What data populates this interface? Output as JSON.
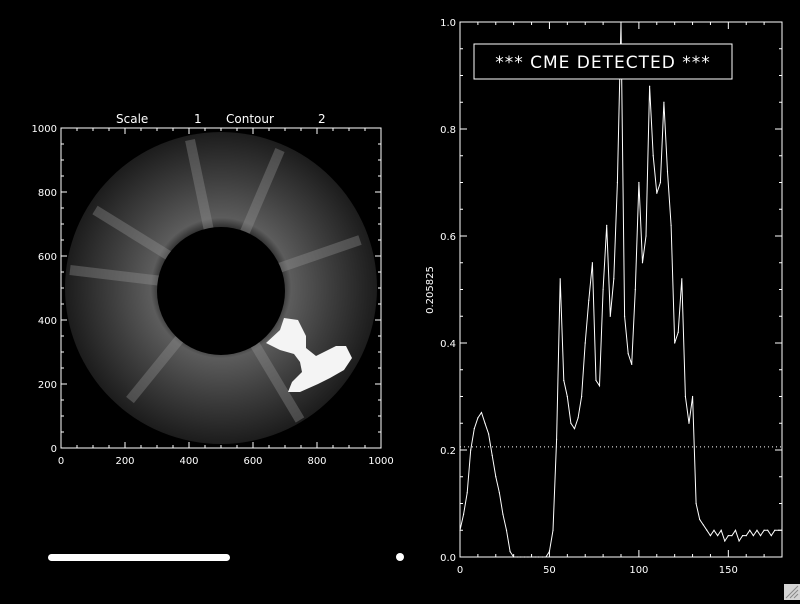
{
  "left_panel": {
    "header": {
      "scale_label": "Scale",
      "scale_value": "1",
      "contour_label": "Contour",
      "contour_value": "2"
    },
    "x_ticks": [
      "0",
      "200",
      "400",
      "600",
      "800",
      "1000"
    ],
    "y_ticks": [
      "0",
      "200",
      "400",
      "600",
      "800",
      "1000"
    ]
  },
  "chart_data": [
    {
      "type": "line",
      "banner": "*** CME DETECTED ***",
      "ylabel": "0.205825",
      "xlabel": "",
      "xlim": [
        0,
        180
      ],
      "ylim": [
        0,
        1.0
      ],
      "x_ticks": [
        "0",
        "50",
        "100",
        "150"
      ],
      "y_ticks": [
        "0.0",
        "0.2",
        "0.4",
        "0.6",
        "0.8",
        "1.0"
      ],
      "threshold": 0.205825,
      "series": [
        {
          "x": [
            0,
            2,
            4,
            6,
            8,
            10,
            12,
            14,
            16,
            18,
            20,
            22,
            24,
            26,
            28,
            30,
            32,
            34,
            36,
            38,
            40,
            42,
            44,
            46,
            48,
            50,
            52,
            54,
            56,
            58,
            60,
            62,
            64,
            66,
            68,
            70,
            72,
            74,
            76,
            78,
            80,
            82,
            84,
            86,
            88,
            90,
            92,
            94,
            96,
            98,
            100,
            102,
            104,
            106,
            108,
            110,
            112,
            114,
            116,
            118,
            120,
            122,
            124,
            126,
            128,
            130,
            132,
            134,
            136,
            138,
            140,
            142,
            144,
            146,
            148,
            150,
            152,
            154,
            156,
            158,
            160,
            162,
            164,
            166,
            168,
            170,
            172,
            174,
            176,
            178,
            180
          ],
          "values": [
            0.05,
            0.08,
            0.12,
            0.2,
            0.24,
            0.26,
            0.27,
            0.25,
            0.23,
            0.19,
            0.15,
            0.12,
            0.08,
            0.05,
            0.01,
            0.0,
            0.0,
            0.0,
            0.0,
            0.0,
            0.0,
            0.0,
            0.0,
            0.0,
            0.0,
            0.01,
            0.05,
            0.22,
            0.52,
            0.33,
            0.3,
            0.25,
            0.24,
            0.26,
            0.3,
            0.4,
            0.48,
            0.55,
            0.33,
            0.32,
            0.5,
            0.62,
            0.45,
            0.52,
            0.7,
            1.0,
            0.45,
            0.38,
            0.36,
            0.5,
            0.7,
            0.55,
            0.6,
            0.88,
            0.75,
            0.68,
            0.7,
            0.85,
            0.72,
            0.62,
            0.4,
            0.42,
            0.52,
            0.3,
            0.25,
            0.3,
            0.1,
            0.07,
            0.06,
            0.05,
            0.04,
            0.05,
            0.04,
            0.05,
            0.03,
            0.04,
            0.04,
            0.05,
            0.03,
            0.04,
            0.04,
            0.05,
            0.04,
            0.05,
            0.04,
            0.05,
            0.05,
            0.04,
            0.05,
            0.05,
            0.05
          ]
        }
      ]
    }
  ],
  "bottom_bar": {
    "fill_fraction": 1.0
  },
  "colors": {
    "background": "#000000",
    "foreground": "#ffffff",
    "cme_blob": "#f4f4f4",
    "halo_inner": "#7a7a7a",
    "halo_outer": "#2a2a2a"
  }
}
